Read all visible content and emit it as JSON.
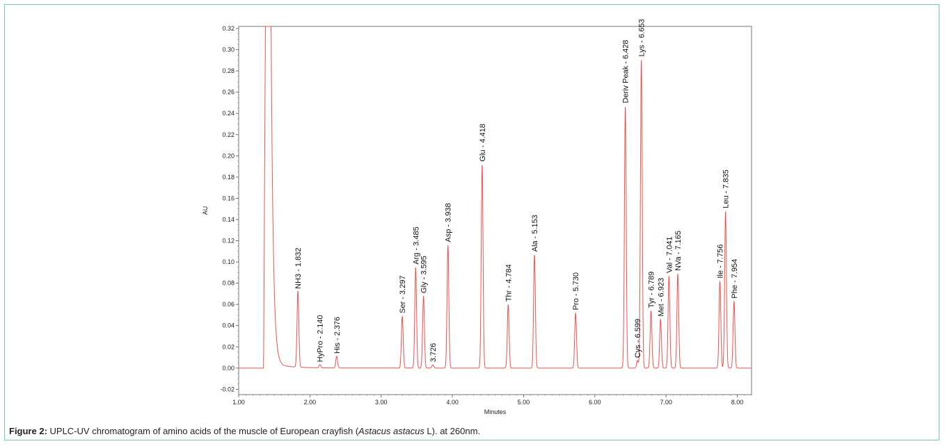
{
  "caption": {
    "label": "Figure 2:",
    "text_before": " UPLC-UV chromatogram of amino acids of the muscle of European crayfish (",
    "species": "Astacus astacus",
    "text_after": " L). at 260nm."
  },
  "chart_data": {
    "type": "line",
    "xlabel": "Minutes",
    "ylabel": "AU",
    "xlim": [
      1.0,
      8.2
    ],
    "ylim": [
      -0.025,
      0.322
    ],
    "x_ticks": [
      "1.00",
      "2.00",
      "3.00",
      "4.00",
      "5.00",
      "6.00",
      "7.00",
      "8.00"
    ],
    "y_ticks": [
      "-0.02",
      "0.00",
      "0.02",
      "0.04",
      "0.06",
      "0.08",
      "0.10",
      "0.12",
      "0.14",
      "0.16",
      "0.18",
      "0.20",
      "0.22",
      "0.24",
      "0.26",
      "0.28",
      "0.30",
      "0.32"
    ],
    "line_color": "#e8504f",
    "grid": false,
    "solvent_front": {
      "rt": 1.4,
      "height": 0.322
    },
    "peaks": [
      {
        "label": "NH3 - 1.832",
        "rt": 1.832,
        "height": 0.072
      },
      {
        "label": "HyPro - 2.140",
        "rt": 2.14,
        "height": 0.003
      },
      {
        "label": "His - 2.376",
        "rt": 2.376,
        "height": 0.011
      },
      {
        "label": "Ser - 3.297",
        "rt": 3.297,
        "height": 0.049
      },
      {
        "label": "Arg - 3.485",
        "rt": 3.485,
        "height": 0.095
      },
      {
        "label": "Gly - 3.595",
        "rt": 3.595,
        "height": 0.068
      },
      {
        "label": "3.726",
        "rt": 3.726,
        "height": 0.003
      },
      {
        "label": "Asp - 3.938",
        "rt": 3.938,
        "height": 0.116
      },
      {
        "label": "Glu - 4.418",
        "rt": 4.418,
        "height": 0.192
      },
      {
        "label": "Thr - 4.784",
        "rt": 4.784,
        "height": 0.06
      },
      {
        "label": "Ala - 5.153",
        "rt": 5.153,
        "height": 0.107
      },
      {
        "label": "Pro - 5.730",
        "rt": 5.73,
        "height": 0.052
      },
      {
        "label": "Deriv Peak - 6.428",
        "rt": 6.428,
        "height": 0.247
      },
      {
        "label": "Cys - 6.599",
        "rt": 6.599,
        "height": 0.007
      },
      {
        "label": "Lys - 6.653",
        "rt": 6.653,
        "height": 0.291
      },
      {
        "label": "Tyr - 6.789",
        "rt": 6.789,
        "height": 0.054
      },
      {
        "label": "Met - 6.923",
        "rt": 6.923,
        "height": 0.046
      },
      {
        "label": "Val - 7.041",
        "rt": 7.041,
        "height": 0.087
      },
      {
        "label": "NVa - 7.165",
        "rt": 7.165,
        "height": 0.089
      },
      {
        "label": "Ile - 7.756",
        "rt": 7.756,
        "height": 0.082
      },
      {
        "label": "Leu - 7.835",
        "rt": 7.835,
        "height": 0.148
      },
      {
        "label": "Phe - 7.954",
        "rt": 7.954,
        "height": 0.063
      }
    ]
  }
}
